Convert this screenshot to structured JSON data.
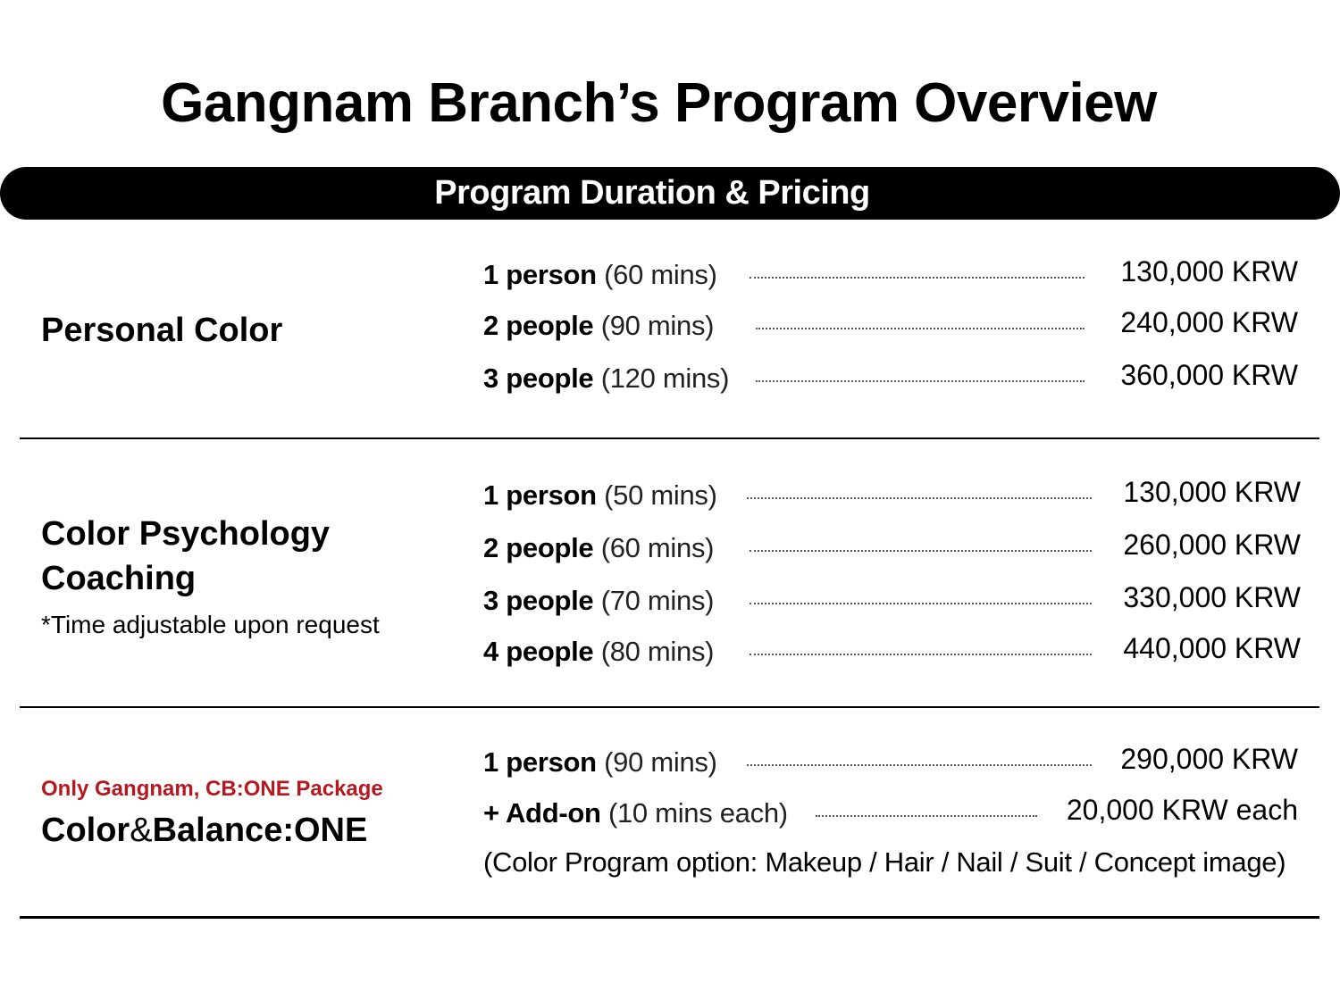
{
  "title": "Gangnam Branch’s Program Overview",
  "section_header": "Program Duration & Pricing",
  "programs": [
    {
      "name": "Personal Color",
      "rows": [
        {
          "people": "1 person",
          "duration": "(60 mins)",
          "price": "130,000 KRW"
        },
        {
          "people": "2 people",
          "duration": "(90 mins)",
          "price": "240,000 KRW"
        },
        {
          "people": "3 people",
          "duration": "(120 mins)",
          "price": "360,000 KRW"
        }
      ]
    },
    {
      "name_line1": "Color Psychology",
      "name_line2": "Coaching",
      "note": "*Time adjustable upon request",
      "rows": [
        {
          "people": "1 person",
          "duration": "(50 mins)",
          "price": "130,000 KRW"
        },
        {
          "people": "2 people",
          "duration": "(60 mins)",
          "price": "260,000 KRW"
        },
        {
          "people": "3 people",
          "duration": "(70 mins)",
          "price": "330,000 KRW"
        },
        {
          "people": "4 people",
          "duration": "(80 mins)",
          "price": "440,000 KRW"
        }
      ]
    },
    {
      "tag": "Only Gangnam, CB:ONE Package",
      "name_part1": "Color",
      "name_amp": "&",
      "name_part2": "Balance:ONE",
      "rows": [
        {
          "people": "1 person",
          "duration": "(90 mins)",
          "price": "290,000 KRW"
        },
        {
          "people": "+ Add-on",
          "duration": "(10 mins each)",
          "price": "20,000 KRW each"
        }
      ],
      "options_label": "(Color Program option",
      "options_colon": ":",
      "options_values": " Makeup / Hair / Nail / Suit / Concept image)"
    }
  ]
}
